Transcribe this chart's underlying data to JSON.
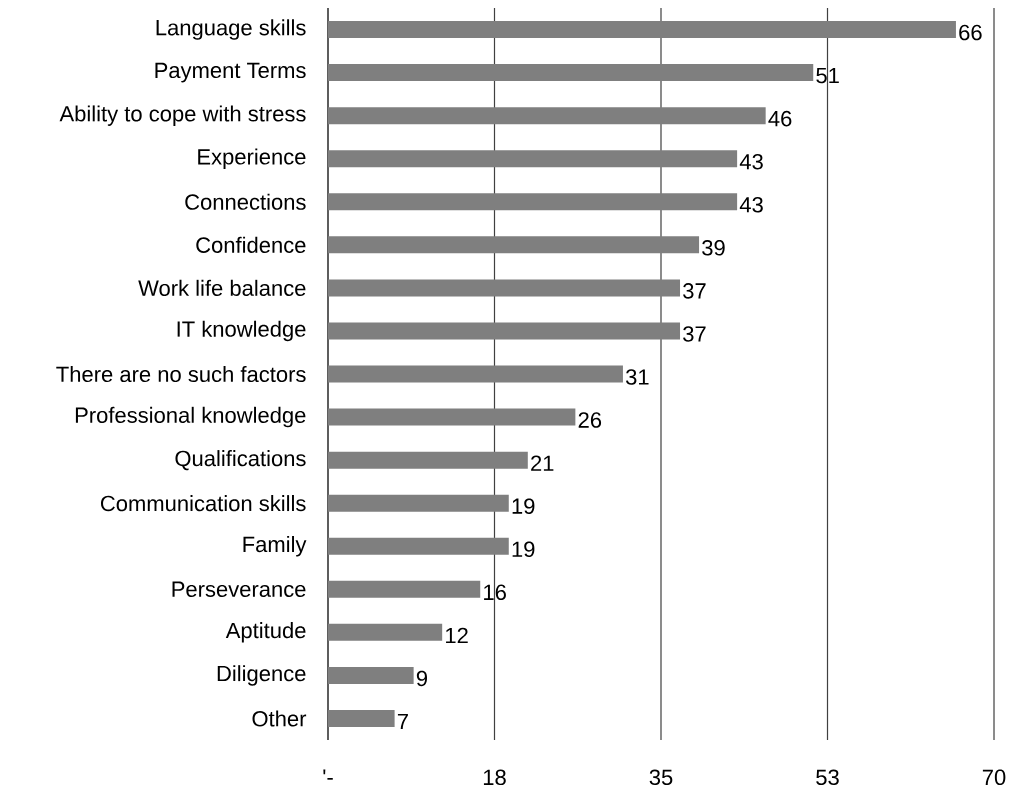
{
  "chart_data": {
    "type": "bar",
    "orientation": "horizontal",
    "categories": [
      "Language skills",
      "Payment Terms",
      "Ability to cope with stress",
      "Experience",
      "Connections",
      "Confidence",
      "Work life balance",
      "IT knowledge",
      "There are no such factors",
      "Professional knowledge",
      "Qualifications",
      "Communication skills",
      "Family",
      "Perseverance",
      "Aptitude",
      "Diligence",
      "Other"
    ],
    "values": [
      66,
      51,
      46,
      43,
      43,
      39,
      37,
      37,
      31,
      26,
      21,
      19,
      19,
      16,
      12,
      9,
      7
    ],
    "color": "#7f7f7f",
    "xlim": [
      0,
      70
    ],
    "xticks": [
      {
        "value": 0,
        "label": "'-"
      },
      {
        "value": 17.5,
        "label": "18"
      },
      35,
      {
        "value": 52.5,
        "label": "53"
      },
      70
    ],
    "grid": "x",
    "data_labels": true
  }
}
